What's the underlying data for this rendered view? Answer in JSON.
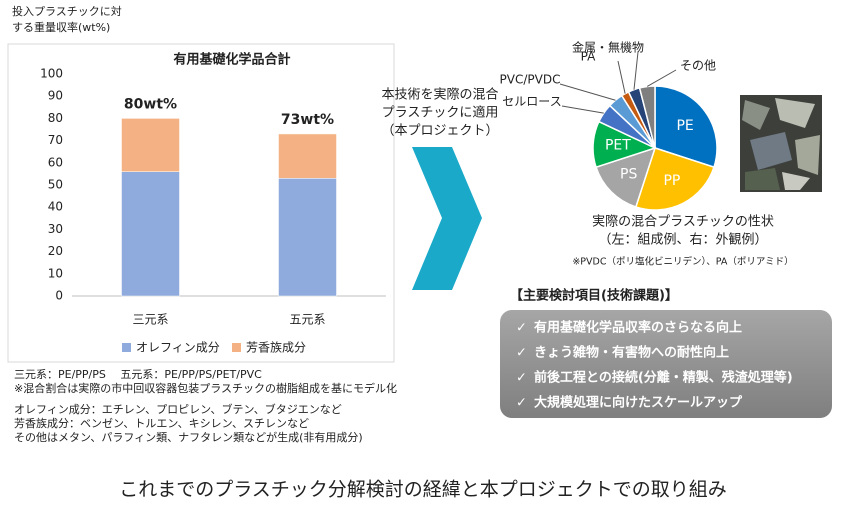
{
  "chart_data": [
    {
      "type": "bar",
      "title": "有用基礎化学品合計",
      "y_label": [
        "投入プラスチックに対",
        "する重量収率(wt%)"
      ],
      "categories": [
        "三元系",
        "五元系"
      ],
      "series": [
        {
          "name": "オレフィン成分",
          "color": "#8faadc",
          "values": [
            56,
            53
          ]
        },
        {
          "name": "芳香族成分",
          "color": "#f4b183",
          "values": [
            24,
            20
          ]
        }
      ],
      "total_labels": [
        "80wt%",
        "73wt%"
      ],
      "ylim": [
        0,
        100
      ],
      "yticks": [
        0,
        10,
        20,
        30,
        40,
        50,
        60,
        70,
        80,
        90,
        100
      ],
      "grid": false,
      "stacked": true
    },
    {
      "type": "pie",
      "categories": [
        "PE",
        "PP",
        "PS",
        "PET",
        "セルロース",
        "PVC/PVDC",
        "PA",
        "金属・無機物",
        "その他"
      ],
      "values": [
        30,
        25,
        15,
        12,
        5,
        4,
        2,
        3,
        4
      ],
      "colors": [
        "#0070c0",
        "#ffc000",
        "#a5a5a5",
        "#00b050",
        "#4472c4",
        "#5b9bd5",
        "#c55a11",
        "#264478",
        "#7f7f7f"
      ]
    }
  ],
  "arrow_text": [
    "本技術を実際の混合",
    "プラスチックに適用",
    "（本プロジェクト）"
  ],
  "pie_caption": [
    "実際の混合プラスチックの性状",
    "（左：組成例、右：外観例）"
  ],
  "pie_note": "※PVDC（ポリ塩化ビニリデン）、PA（ポリアミド）",
  "bar_notes": [
    "三元系：PE/PP/PS　 五元系：PE/PP/PS/PET/PVC",
    "※混合割合は実際の市中回収容器包装プラスチックの樹脂組成を基にモデル化"
  ],
  "component_notes": [
    "オレフィン成分：エチレン、プロピレン、ブテン、ブタジエンなど",
    "芳香族成分：ベンゼン、トルエン、キシレン、スチレンなど",
    "その他はメタン、パラフィン類、ナフタレン類などが生成(非有用成分)"
  ],
  "tasks": {
    "header": "【主要検討項目(技術課題)】",
    "items": [
      "有用基礎化学品収率のさらなる向上",
      "きょう雑物・有害物への耐性向上",
      "前後工程との接続(分離・精製、残渣処理等)",
      "大規模処理に向けたスケールアップ"
    ]
  },
  "footer_title": "これまでのプラスチック分解検討の経緯と本プロジェクトでの取り組み"
}
